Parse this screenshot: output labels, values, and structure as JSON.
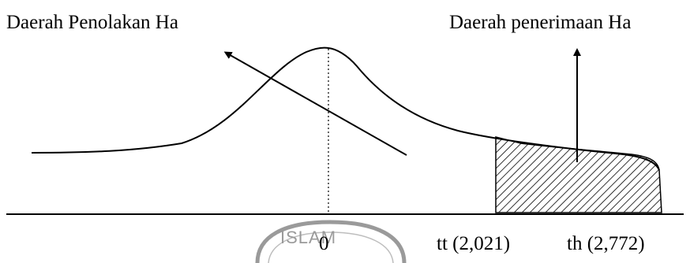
{
  "labels": {
    "rejection_region": "Daerah Penolakan Ha",
    "acceptance_region": "Daerah penerimaan Ha",
    "center": "0",
    "t_table": "tt (2,021)",
    "t_count": "th (2,772)"
  },
  "watermark": {
    "text": "ISLAM",
    "color": "#9a9a9a"
  },
  "colors": {
    "line": "#000000",
    "background": "#ffffff"
  }
}
